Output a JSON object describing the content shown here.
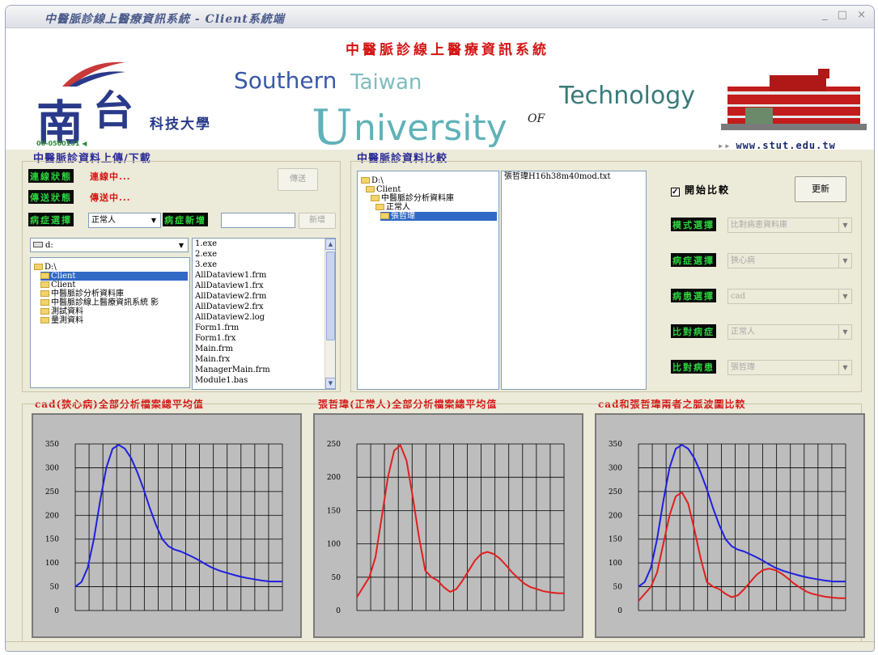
{
  "window": {
    "title": "中醫脈診線上醫療資訊系統 - Client系統端",
    "controls": {
      "minimize": "_",
      "maximize": "□",
      "close": "×"
    }
  },
  "banner": {
    "title": "中醫脈診線上醫療資訊系統",
    "logo_nan": "南",
    "logo_tai": "台",
    "logo_kj": "科技大學",
    "logo_code": "00-0500101",
    "word_southern": "Southern",
    "word_taiwan": "Taiwan",
    "word_u": "U",
    "word_niversity": "niversity",
    "word_of": "OF",
    "word_technology": "Technology",
    "url": "www.stut.edu.tw"
  },
  "upload_panel": {
    "title": "中醫脈診資料上傳/下載",
    "connection_label": "連線狀態",
    "connection_status": "連線中...",
    "transfer_label": "傳送狀態",
    "transfer_status": "傳送中...",
    "send_button": "傳送",
    "disease_label": "病症選擇",
    "disease_value": "正常人",
    "new_disease_label": "病症新增",
    "new_disease_value": "",
    "add_button": "新增",
    "drive_value": "d:",
    "tree": [
      {
        "label": "D:\\",
        "indent": 0,
        "selected": false
      },
      {
        "label": "Client",
        "indent": 1,
        "selected": true
      },
      {
        "label": "Client",
        "indent": 1,
        "selected": false
      },
      {
        "label": "中醫脈診分析資料庫",
        "indent": 1,
        "selected": false
      },
      {
        "label": "中醫脈診線上醫療資訊系統 影",
        "indent": 1,
        "selected": false
      },
      {
        "label": "測試資料",
        "indent": 1,
        "selected": false
      },
      {
        "label": "量測資料",
        "indent": 1,
        "selected": false
      }
    ],
    "files": [
      "1.exe",
      "2.exe",
      "3.exe",
      "AllDataview1.frm",
      "AllDataview1.frx",
      "AllDataview2.frm",
      "AllDataview2.frx",
      "AllDataview2.log",
      "Form1.frm",
      "Form1.frx",
      "Main.frm",
      "Main.frx",
      "ManagerMain.frm",
      "Module1.bas"
    ]
  },
  "compare_panel": {
    "title": "中醫脈診資料比較",
    "tree": [
      {
        "label": "D:\\",
        "indent": 0,
        "selected": false
      },
      {
        "label": "Client",
        "indent": 1,
        "selected": false
      },
      {
        "label": "中醫脈診分析資料庫",
        "indent": 2,
        "selected": false
      },
      {
        "label": "正常人",
        "indent": 3,
        "selected": false
      },
      {
        "label": "張哲瑋",
        "indent": 4,
        "selected": true
      }
    ],
    "files": [
      "張哲瑋H16h38m40mod.txt"
    ],
    "start_compare_checked": "✓",
    "start_compare_label": "開始比較",
    "update_button": "更新",
    "rows": [
      {
        "label": "模式選擇",
        "value": "比對病患資料庫"
      },
      {
        "label": "病症選擇",
        "value": "狹心病"
      },
      {
        "label": "病患選擇",
        "value": "cad"
      },
      {
        "label": "比對病症",
        "value": "正常人"
      },
      {
        "label": "比對病患",
        "value": "張哲瑋"
      }
    ]
  },
  "charts": {
    "titles": [
      "cad(狹心病)全部分析檔案總平均值",
      "張哲瑋(正常人)全部分析檔案總平均值",
      "cad和張哲瑋兩者之脈波圖比較"
    ]
  },
  "colors": {
    "series_blue": "#1f1fe0",
    "series_red": "#e01f1f"
  },
  "chart_data": [
    {
      "type": "line",
      "y_ticks": [
        0,
        50,
        100,
        150,
        200,
        250,
        300,
        350
      ],
      "ylim": [
        0,
        350
      ],
      "xlim": [
        0,
        100
      ],
      "grid": true,
      "series": [
        {
          "color": "#1f1fe0",
          "x": [
            0,
            3,
            6,
            9,
            12,
            15,
            18,
            21,
            24,
            27,
            30,
            33,
            36,
            39,
            42,
            45,
            48,
            51,
            54,
            57,
            60,
            63,
            66,
            70,
            74,
            78,
            82,
            86,
            90,
            94,
            97,
            100
          ],
          "y": [
            50,
            60,
            90,
            150,
            230,
            300,
            340,
            348,
            340,
            320,
            290,
            255,
            215,
            180,
            150,
            135,
            128,
            124,
            118,
            112,
            105,
            97,
            90,
            83,
            78,
            73,
            69,
            66,
            63,
            61,
            61,
            61
          ]
        }
      ]
    },
    {
      "type": "line",
      "y_ticks": [
        0,
        50,
        100,
        150,
        200,
        250
      ],
      "ylim": [
        0,
        250
      ],
      "xlim": [
        0,
        100
      ],
      "grid": true,
      "series": [
        {
          "color": "#e01f1f",
          "x": [
            0,
            3,
            6,
            9,
            12,
            15,
            18,
            21,
            24,
            27,
            30,
            33,
            36,
            39,
            42,
            45,
            48,
            51,
            54,
            57,
            60,
            63,
            66,
            69,
            72,
            75,
            78,
            81,
            84,
            87,
            90,
            94,
            97,
            100
          ],
          "y": [
            20,
            35,
            50,
            80,
            140,
            200,
            240,
            248,
            225,
            170,
            110,
            60,
            50,
            45,
            35,
            28,
            32,
            45,
            60,
            75,
            85,
            88,
            85,
            78,
            68,
            57,
            48,
            40,
            35,
            32,
            29,
            27,
            26,
            26
          ]
        }
      ]
    },
    {
      "type": "line",
      "y_ticks": [
        0,
        50,
        100,
        150,
        200,
        250,
        300,
        350
      ],
      "ylim": [
        0,
        350
      ],
      "xlim": [
        0,
        100
      ],
      "grid": true,
      "series": [
        {
          "color": "#1f1fe0",
          "x": [
            0,
            3,
            6,
            9,
            12,
            15,
            18,
            21,
            24,
            27,
            30,
            33,
            36,
            39,
            42,
            45,
            48,
            51,
            54,
            57,
            60,
            63,
            66,
            70,
            74,
            78,
            82,
            86,
            90,
            94,
            97,
            100
          ],
          "y": [
            50,
            60,
            90,
            150,
            230,
            300,
            340,
            348,
            340,
            320,
            290,
            255,
            215,
            180,
            150,
            135,
            128,
            124,
            118,
            112,
            105,
            97,
            90,
            83,
            78,
            73,
            69,
            66,
            63,
            61,
            61,
            61
          ]
        },
        {
          "color": "#e01f1f",
          "x": [
            0,
            3,
            6,
            9,
            12,
            15,
            18,
            21,
            24,
            27,
            30,
            33,
            36,
            39,
            42,
            45,
            48,
            51,
            54,
            57,
            60,
            63,
            66,
            69,
            72,
            75,
            78,
            81,
            84,
            87,
            90,
            94,
            97,
            100
          ],
          "y": [
            20,
            35,
            50,
            80,
            140,
            200,
            240,
            248,
            225,
            170,
            110,
            60,
            50,
            45,
            35,
            28,
            32,
            45,
            60,
            75,
            85,
            88,
            85,
            78,
            68,
            57,
            48,
            40,
            35,
            32,
            29,
            27,
            26,
            26
          ]
        }
      ]
    }
  ]
}
